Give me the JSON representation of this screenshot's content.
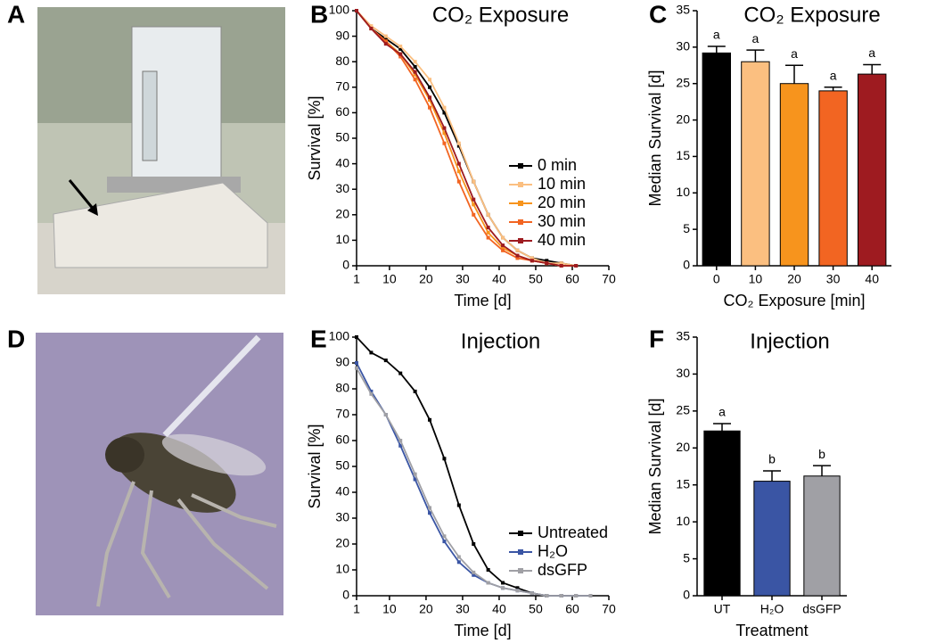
{
  "photos": [
    {
      "panel": "A"
    },
    {
      "panel": "D"
    }
  ],
  "chart_data": [
    {
      "type": "line",
      "panel": "B",
      "title": "CO₂ Exposure",
      "xlabel": "Time [d]",
      "ylabel": "Survival [%]",
      "xlim": [
        1,
        70
      ],
      "xticks": [
        1,
        10,
        20,
        30,
        40,
        50,
        60,
        70
      ],
      "ylim": [
        0,
        100
      ],
      "yticks": [
        0,
        10,
        20,
        30,
        40,
        50,
        60,
        70,
        80,
        90,
        100
      ],
      "legend": "lower-right",
      "x": [
        1,
        5,
        9,
        13,
        17,
        21,
        25,
        29,
        33,
        37,
        41,
        45,
        49,
        53,
        57,
        61
      ],
      "series": [
        {
          "name": "0 min",
          "color": "#000000",
          "values": [
            100,
            93,
            89,
            85,
            78,
            70,
            60,
            47,
            33,
            20,
            11,
            6,
            3,
            2,
            1,
            0
          ]
        },
        {
          "name": "10 min",
          "color": "#fbbf80",
          "values": [
            100,
            94,
            90,
            86,
            80,
            73,
            62,
            48,
            33,
            20,
            11,
            6,
            3,
            1,
            1,
            0
          ]
        },
        {
          "name": "20 min",
          "color": "#f7941d",
          "values": [
            100,
            93,
            88,
            83,
            75,
            65,
            52,
            37,
            24,
            13,
            7,
            4,
            2,
            1,
            0,
            0
          ]
        },
        {
          "name": "30 min",
          "color": "#f26522",
          "values": [
            100,
            93,
            88,
            82,
            73,
            62,
            48,
            33,
            20,
            11,
            6,
            3,
            2,
            1,
            0,
            0
          ]
        },
        {
          "name": "40 min",
          "color": "#9e1b20",
          "values": [
            100,
            93,
            87,
            83,
            76,
            66,
            54,
            40,
            26,
            15,
            8,
            4,
            2,
            1,
            0,
            0
          ]
        }
      ]
    },
    {
      "type": "bar",
      "panel": "C",
      "title": "CO₂ Exposure",
      "xlabel": "CO₂ Exposure [min]",
      "ylabel": "Median Survival [d]",
      "ylim": [
        0,
        35
      ],
      "yticks": [
        0,
        5,
        10,
        15,
        20,
        25,
        30,
        35
      ],
      "categories": [
        "0",
        "10",
        "20",
        "30",
        "40"
      ],
      "values": [
        29.2,
        28,
        25,
        24,
        26.3
      ],
      "errors": [
        0.9,
        1.6,
        2.5,
        0.5,
        1.3
      ],
      "colors": [
        "#000000",
        "#fbbf80",
        "#f7941d",
        "#f26522",
        "#9e1b20"
      ],
      "significance": [
        "a",
        "a",
        "a",
        "a",
        "a"
      ]
    },
    {
      "type": "line",
      "panel": "E",
      "title": "Injection",
      "xlabel": "Time [d]",
      "ylabel": "Survival [%]",
      "xlim": [
        1,
        70
      ],
      "xticks": [
        1,
        10,
        20,
        30,
        40,
        50,
        60,
        70
      ],
      "ylim": [
        0,
        100
      ],
      "yticks": [
        0,
        10,
        20,
        30,
        40,
        50,
        60,
        70,
        80,
        90,
        100
      ],
      "legend": "lower-right",
      "x": [
        1,
        5,
        9,
        13,
        17,
        21,
        25,
        29,
        33,
        37,
        41,
        45,
        49,
        53,
        57,
        61,
        65
      ],
      "series": [
        {
          "name": "Untreated",
          "color": "#000000",
          "values": [
            100,
            94,
            91,
            86,
            79,
            68,
            53,
            35,
            20,
            10,
            5,
            3,
            1,
            0,
            0,
            0,
            0
          ]
        },
        {
          "name": "H₂O",
          "color": "#3a55a4",
          "values": [
            90,
            79,
            70,
            58,
            45,
            32,
            21,
            13,
            8,
            5,
            3,
            2,
            1,
            0,
            0,
            0,
            0
          ]
        },
        {
          "name": "dsGFP",
          "color": "#a0a0a5",
          "values": [
            88,
            78,
            70,
            60,
            47,
            34,
            23,
            15,
            9,
            5,
            3,
            2,
            1,
            0,
            0,
            0,
            0
          ]
        }
      ]
    },
    {
      "type": "bar",
      "panel": "F",
      "title": "Injection",
      "xlabel": "Treatment",
      "ylabel": "Median Survival [d]",
      "ylim": [
        0,
        35
      ],
      "yticks": [
        0,
        5,
        10,
        15,
        20,
        25,
        30,
        35
      ],
      "categories": [
        "UT",
        "H₂O",
        "dsGFP"
      ],
      "values": [
        22.3,
        15.5,
        16.2
      ],
      "errors": [
        1,
        1.4,
        1.4
      ],
      "colors": [
        "#000000",
        "#3a55a4",
        "#a0a0a5"
      ],
      "significance": [
        "a",
        "b",
        "b"
      ]
    }
  ]
}
